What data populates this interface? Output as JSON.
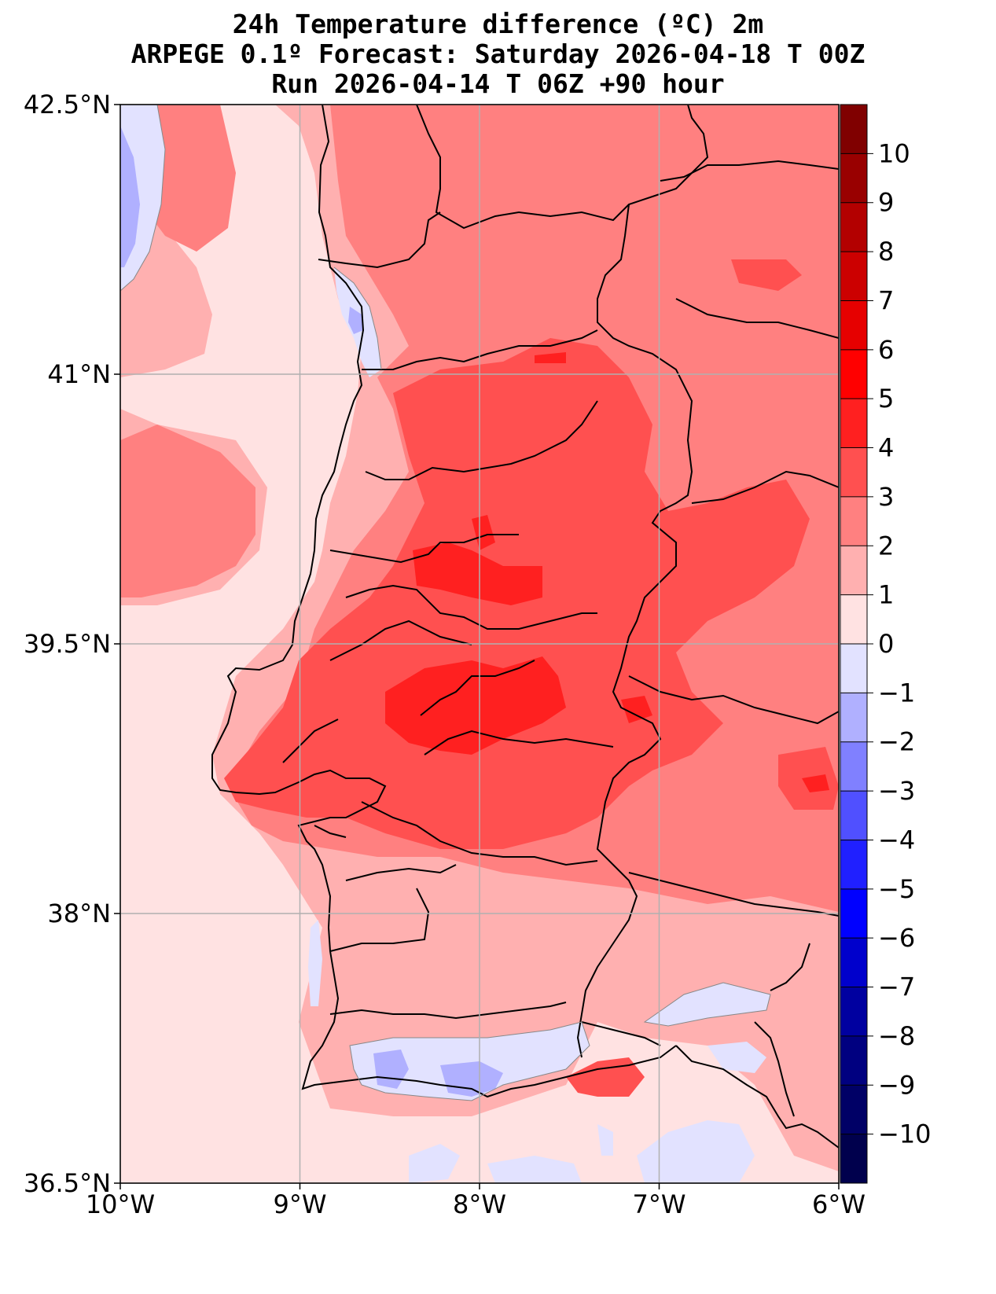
{
  "title": {
    "line1": "24h Temperature difference (ºC) 2m",
    "line2": "ARPEGE 0.1º Forecast: Saturday 2026-04-18 T 00Z",
    "line3": "Run 2026-04-14 T 06Z +90 hour"
  },
  "map": {
    "region": "Portugal",
    "lon_range": [
      -10,
      -6
    ],
    "lat_range": [
      36.5,
      42.5
    ],
    "lat_ticks": [
      {
        "value": 42.5,
        "label": "42.5°N"
      },
      {
        "value": 41,
        "label": "41°N"
      },
      {
        "value": 39.5,
        "label": "39.5°N"
      },
      {
        "value": 38,
        "label": "38°N"
      },
      {
        "value": 36.5,
        "label": "36.5°N"
      }
    ],
    "lon_ticks": [
      {
        "value": -10,
        "label": "10°W"
      },
      {
        "value": -9,
        "label": "9°W"
      },
      {
        "value": -8,
        "label": "8°W"
      },
      {
        "value": -7,
        "label": "7°W"
      },
      {
        "value": -6,
        "label": "6°W"
      }
    ],
    "grid": true
  },
  "colorbar": {
    "labels": [
      "10",
      "9",
      "8",
      "7",
      "6",
      "5",
      "4",
      "3",
      "2",
      "1",
      "0",
      "−1",
      "−2",
      "−3",
      "−4",
      "−5",
      "−6",
      "−7",
      "−8",
      "−9",
      "−10"
    ],
    "bins": [
      {
        "min": 10,
        "max": 11,
        "color": "#800000"
      },
      {
        "min": 9,
        "max": 10,
        "color": "#990000"
      },
      {
        "min": 8,
        "max": 9,
        "color": "#b30000"
      },
      {
        "min": 7,
        "max": 8,
        "color": "#cc0000"
      },
      {
        "min": 6,
        "max": 7,
        "color": "#e60000"
      },
      {
        "min": 5,
        "max": 6,
        "color": "#ff0000"
      },
      {
        "min": 4,
        "max": 5,
        "color": "#ff2020"
      },
      {
        "min": 3,
        "max": 4,
        "color": "#ff5050"
      },
      {
        "min": 2,
        "max": 3,
        "color": "#ff8080"
      },
      {
        "min": 1,
        "max": 2,
        "color": "#ffb0b0"
      },
      {
        "min": 0,
        "max": 1,
        "color": "#ffe2e2"
      },
      {
        "min": -1,
        "max": 0,
        "color": "#e2e2ff"
      },
      {
        "min": -2,
        "max": -1,
        "color": "#b0b0ff"
      },
      {
        "min": -3,
        "max": -2,
        "color": "#8080ff"
      },
      {
        "min": -4,
        "max": -3,
        "color": "#5050ff"
      },
      {
        "min": -5,
        "max": -4,
        "color": "#2020ff"
      },
      {
        "min": -6,
        "max": -5,
        "color": "#0000ff"
      },
      {
        "min": -7,
        "max": -6,
        "color": "#0000cc"
      },
      {
        "min": -8,
        "max": -7,
        "color": "#0000a0"
      },
      {
        "min": -9,
        "max": -8,
        "color": "#000080"
      },
      {
        "min": -10,
        "max": -9,
        "color": "#000066"
      },
      {
        "min": -11,
        "max": -10,
        "color": "#00004d"
      }
    ]
  }
}
